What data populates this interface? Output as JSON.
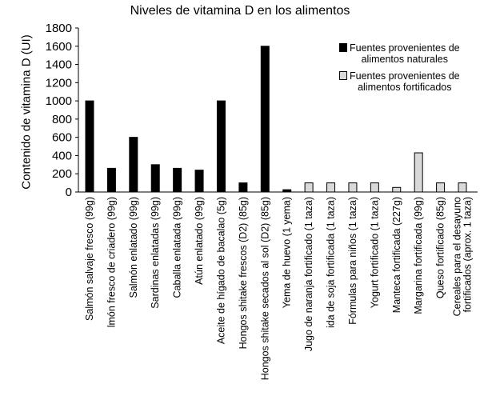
{
  "chart_data": {
    "type": "bar",
    "title": "Niveles de vitamina D en los alimentos",
    "ylabel": "Contenido de vitamina D (UI)",
    "xlabel": "",
    "ylim": [
      0,
      1800
    ],
    "yticks": [
      0,
      200,
      400,
      600,
      800,
      1000,
      1200,
      1400,
      1600,
      1800
    ],
    "grid": false,
    "legend_position": "top-right",
    "legend": [
      {
        "line1": "Fuentes provenientes de",
        "line2": "alimentos naturales",
        "color": "#000000"
      },
      {
        "line1": "Fuentes provenientes de",
        "line2": "alimentos fortificados",
        "color": "#d9d9d9"
      }
    ],
    "categories": [
      "Salmón salvaje fresco (99g)",
      "lmón fresco de criadero (99g)",
      "Salmón enlatado (99g)",
      "Sardinas enlatadas (99g)",
      "Caballa enlatada (99g)",
      "Atún enlatado (99g)",
      "Aceite de hígado de bacalao (5g)",
      "Hongos shitake frescos (D2) (85g)",
      "Hongos shitake secados al sol (D2) (85g)",
      "Yema de huevo (1 yema)",
      "Jugo de naranja fortificado (1 taza)",
      "ida de soja fortificada (1 taza)",
      "Fórmulas para niños (1 taza)",
      "Yogurt fortificado (1 taza)",
      "Manteca fortificada (227g)",
      "Margarina fortificada (99g)",
      "Queso fortificado (85g)",
      [
        "Cereales para el desayuno",
        "fortificados (aprox. 1 taza)"
      ]
    ],
    "values": [
      1000,
      260,
      600,
      300,
      260,
      240,
      1000,
      100,
      1600,
      25,
      100,
      100,
      100,
      100,
      50,
      430,
      100,
      100
    ],
    "series_index": [
      0,
      0,
      0,
      0,
      0,
      0,
      0,
      0,
      0,
      0,
      1,
      1,
      1,
      1,
      1,
      1,
      1,
      1
    ]
  }
}
